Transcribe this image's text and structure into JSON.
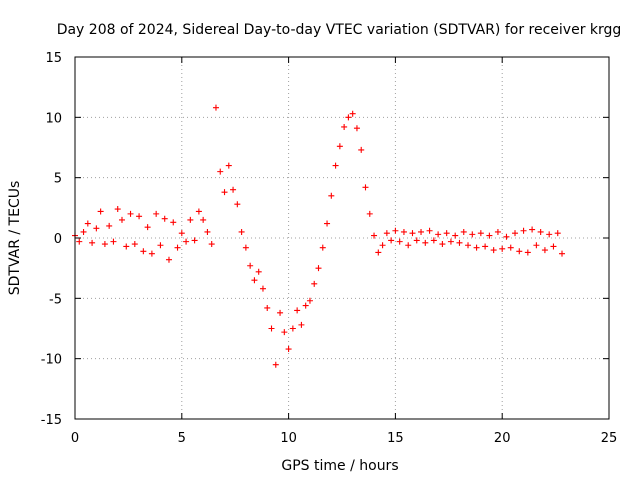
{
  "chart_data": {
    "type": "scatter",
    "title": "Day 208 of 2024, Sidereal Day-to-day VTEC variation (SDTVAR) for receiver krgg",
    "xlabel": "GPS time / hours",
    "ylabel": "SDTVAR / TECUs",
    "xlim": [
      0,
      25
    ],
    "ylim": [
      -15,
      15
    ],
    "xticks": [
      0,
      5,
      10,
      15,
      20,
      25
    ],
    "yticks": [
      -15,
      -10,
      -5,
      0,
      5,
      10,
      15
    ],
    "grid": true,
    "marker": "+",
    "color": "#ff0000",
    "series": [
      {
        "name": "SDTVAR",
        "x": [
          0.0,
          0.2,
          0.4,
          0.6,
          0.8,
          1.0,
          1.2,
          1.4,
          1.6,
          1.8,
          2.0,
          2.2,
          2.4,
          2.6,
          2.8,
          3.0,
          3.2,
          3.4,
          3.6,
          3.8,
          4.0,
          4.2,
          4.4,
          4.6,
          4.8,
          5.0,
          5.2,
          5.4,
          5.6,
          5.8,
          6.0,
          6.2,
          6.4,
          6.6,
          6.8,
          7.0,
          7.2,
          7.4,
          7.6,
          7.8,
          8.0,
          8.2,
          8.4,
          8.6,
          8.8,
          9.0,
          9.2,
          9.4,
          9.6,
          9.8,
          10.0,
          10.2,
          10.4,
          10.6,
          10.8,
          11.0,
          11.2,
          11.4,
          11.6,
          11.8,
          12.0,
          12.2,
          12.4,
          12.6,
          12.8,
          13.0,
          13.2,
          13.4,
          13.6,
          13.8,
          14.0,
          14.2,
          14.4,
          14.6,
          14.8,
          15.0,
          15.2,
          15.4,
          15.6,
          15.8,
          16.0,
          16.2,
          16.4,
          16.6,
          16.8,
          17.0,
          17.2,
          17.4,
          17.6,
          17.8,
          18.0,
          18.2,
          18.4,
          18.6,
          18.8,
          19.0,
          19.2,
          19.4,
          19.6,
          19.8,
          20.0,
          20.2,
          20.4,
          20.6,
          20.8,
          21.0,
          21.2,
          21.4,
          21.6,
          21.8,
          22.0,
          22.2,
          22.4,
          22.6,
          22.8
        ],
        "y": [
          0.2,
          -0.3,
          0.5,
          1.2,
          -0.4,
          0.8,
          2.2,
          -0.5,
          1.0,
          -0.3,
          2.4,
          1.5,
          -0.7,
          2.0,
          -0.5,
          1.8,
          -1.1,
          0.9,
          -1.3,
          2.0,
          -0.6,
          1.6,
          -1.8,
          1.3,
          -0.8,
          0.4,
          -0.3,
          1.5,
          -0.2,
          2.2,
          1.5,
          0.5,
          -0.5,
          10.8,
          5.5,
          3.8,
          6.0,
          4.0,
          2.8,
          0.5,
          -0.8,
          -2.3,
          -3.5,
          -2.8,
          -4.2,
          -5.8,
          -7.5,
          -10.5,
          -6.2,
          -7.8,
          -9.2,
          -7.5,
          -6.0,
          -7.2,
          -5.6,
          -5.2,
          -3.8,
          -2.5,
          -0.8,
          1.2,
          3.5,
          6.0,
          7.6,
          9.2,
          10.0,
          10.3,
          9.1,
          7.3,
          4.2,
          2.0,
          0.2,
          -1.2,
          -0.6,
          0.4,
          -0.2,
          0.6,
          -0.3,
          0.5,
          -0.6,
          0.4,
          -0.2,
          0.5,
          -0.4,
          0.6,
          -0.2,
          0.3,
          -0.5,
          0.4,
          -0.3,
          0.2,
          -0.4,
          0.5,
          -0.6,
          0.3,
          -0.8,
          0.4,
          -0.7,
          0.2,
          -1.0,
          0.5,
          -0.9,
          0.1,
          -0.8,
          0.4,
          -1.1,
          0.6,
          -1.2,
          0.7,
          -0.6,
          0.5,
          -1.0,
          0.3,
          -0.7,
          0.4,
          -1.3
        ]
      }
    ]
  }
}
